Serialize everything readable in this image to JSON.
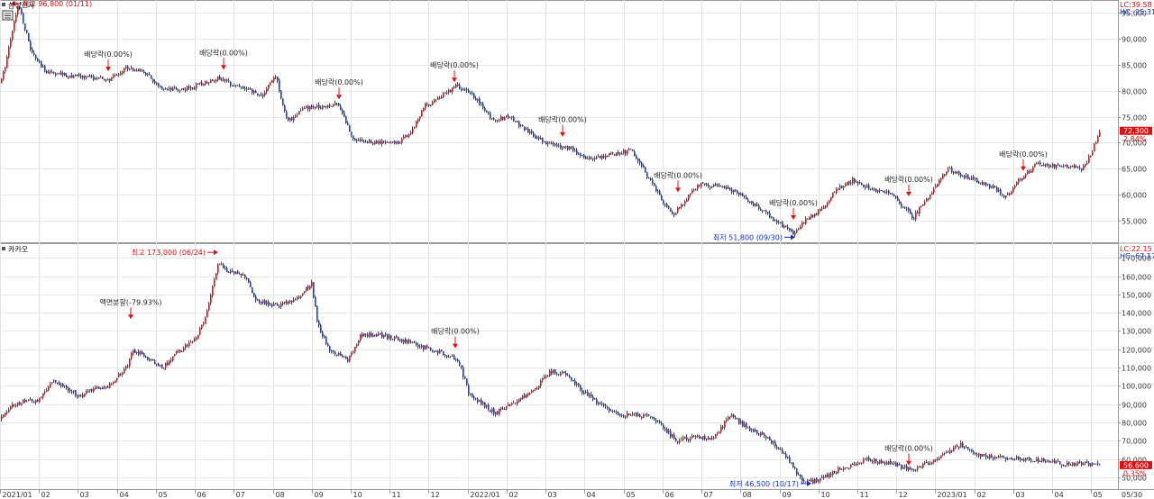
{
  "chart_data": [
    {
      "type": "candlestick",
      "title": "삼성전자",
      "indicators": [
        {
          "label": "LC:39.58",
          "color": "#d01010"
        },
        {
          "label": "HC:-25.31",
          "color": "#1030c0"
        }
      ],
      "y_ticks": [
        "55,000",
        "60,000",
        "65,000",
        "70,000",
        "75,000",
        "80,000",
        "85,000",
        "90,000",
        "95,000"
      ],
      "ylim": [
        51000,
        97500
      ],
      "current_price": "72,300",
      "current_change": "2.84%",
      "series": {
        "name": "삼성전자",
        "up_color": "#e01010",
        "down_color": "#1040d0",
        "anchors": [
          [
            0,
            81500
          ],
          [
            4,
            84000
          ],
          [
            12,
            91000
          ],
          [
            20,
            96800
          ],
          [
            34,
            87500
          ],
          [
            48,
            84000
          ],
          [
            70,
            83000
          ],
          [
            100,
            82600
          ],
          [
            120,
            82000
          ],
          [
            140,
            84600
          ],
          [
            160,
            83500
          ],
          [
            180,
            80000
          ],
          [
            210,
            80500
          ],
          [
            240,
            82500
          ],
          [
            270,
            80500
          ],
          [
            290,
            79000
          ],
          [
            305,
            83000
          ],
          [
            318,
            74000
          ],
          [
            335,
            76500
          ],
          [
            355,
            77000
          ],
          [
            375,
            77500
          ],
          [
            390,
            71000
          ],
          [
            410,
            70000
          ],
          [
            440,
            70000
          ],
          [
            455,
            72000
          ],
          [
            470,
            77000
          ],
          [
            490,
            79000
          ],
          [
            505,
            81000
          ],
          [
            525,
            79000
          ],
          [
            545,
            74500
          ],
          [
            565,
            75000
          ],
          [
            585,
            72000
          ],
          [
            605,
            70000
          ],
          [
            630,
            69000
          ],
          [
            650,
            67000
          ],
          [
            670,
            67500
          ],
          [
            700,
            68500
          ],
          [
            730,
            60000
          ],
          [
            745,
            56000
          ],
          [
            760,
            59000
          ],
          [
            775,
            62000
          ],
          [
            800,
            61500
          ],
          [
            820,
            60000
          ],
          [
            840,
            57500
          ],
          [
            860,
            55000
          ],
          [
            880,
            52500
          ],
          [
            895,
            55500
          ],
          [
            910,
            57000
          ],
          [
            925,
            60500
          ],
          [
            945,
            63000
          ],
          [
            965,
            61000
          ],
          [
            990,
            60000
          ],
          [
            1012,
            55500
          ],
          [
            1030,
            60000
          ],
          [
            1050,
            65000
          ],
          [
            1070,
            63500
          ],
          [
            1100,
            61500
          ],
          [
            1115,
            59500
          ],
          [
            1130,
            63000
          ],
          [
            1150,
            66000
          ],
          [
            1175,
            65500
          ],
          [
            1200,
            65000
          ],
          [
            1210,
            68000
          ],
          [
            1219,
            72300
          ]
        ]
      },
      "annotations": [
        {
          "text": "최고 96,800 (01/11)",
          "color": "#d01010",
          "marker": "left-arrow",
          "x": 12,
          "y": 96800
        },
        {
          "text": "최저 51,800 (09/30)",
          "color": "#1030c0",
          "marker": "right-arrow",
          "x": 882,
          "y": 51800
        },
        {
          "text": "배당락(0.00%)",
          "color": "#222222",
          "marker": "down-arrow",
          "x": 120,
          "y": 83600
        },
        {
          "text": "배당락(0.00%)",
          "color": "#222222",
          "marker": "down-arrow",
          "x": 248,
          "y": 83900
        },
        {
          "text": "배당락(0.00%)",
          "color": "#222222",
          "marker": "down-arrow",
          "x": 376,
          "y": 78200
        },
        {
          "text": "배당락(0.00%)",
          "color": "#222222",
          "marker": "down-arrow",
          "x": 504,
          "y": 81500
        },
        {
          "text": "배당락(0.00%)",
          "color": "#222222",
          "marker": "down-arrow",
          "x": 624,
          "y": 71000
        },
        {
          "text": "배당락(0.00%)",
          "color": "#222222",
          "marker": "down-arrow",
          "x": 752,
          "y": 60300
        },
        {
          "text": "배당락(0.00%)",
          "color": "#222222",
          "marker": "down-arrow",
          "x": 880,
          "y": 55000
        },
        {
          "text": "배당락(0.00%)",
          "color": "#222222",
          "marker": "down-arrow",
          "x": 1008,
          "y": 59500
        },
        {
          "text": "배당락(0.00%)",
          "color": "#222222",
          "marker": "down-arrow",
          "x": 1135,
          "y": 64400
        }
      ]
    },
    {
      "type": "candlestick",
      "title": "카카오",
      "indicators": [
        {
          "label": "LC:22.15",
          "color": "#d01010"
        },
        {
          "label": "HC:-67.17",
          "color": "#1030c0"
        }
      ],
      "y_ticks": [
        "50,000",
        "60,000",
        "70,000",
        "80,000",
        "90,000",
        "100,000",
        "110,000",
        "120,000",
        "130,000",
        "140,000",
        "150,000",
        "160,000",
        "170,000"
      ],
      "ylim": [
        44000,
        178000
      ],
      "current_price": "56,600",
      "current_change": "0.35%",
      "series": {
        "name": "카카오",
        "up_color": "#e01010",
        "down_color": "#1040d0",
        "anchors": [
          [
            0,
            82000
          ],
          [
            10,
            88000
          ],
          [
            25,
            92000
          ],
          [
            40,
            91000
          ],
          [
            60,
            103000
          ],
          [
            75,
            98000
          ],
          [
            90,
            94000
          ],
          [
            100,
            98000
          ],
          [
            120,
            100000
          ],
          [
            135,
            108000
          ],
          [
            142,
            112000
          ],
          [
            146,
            120000
          ],
          [
            160,
            116000
          ],
          [
            180,
            110000
          ],
          [
            195,
            118000
          ],
          [
            215,
            125000
          ],
          [
            228,
            138000
          ],
          [
            236,
            155000
          ],
          [
            242,
            168000
          ],
          [
            250,
            163000
          ],
          [
            270,
            160000
          ],
          [
            285,
            146000
          ],
          [
            305,
            144000
          ],
          [
            325,
            146000
          ],
          [
            345,
            156000
          ],
          [
            352,
            133000
          ],
          [
            365,
            120000
          ],
          [
            385,
            114000
          ],
          [
            400,
            128000
          ],
          [
            420,
            128000
          ],
          [
            445,
            125000
          ],
          [
            470,
            121000
          ],
          [
            490,
            118000
          ],
          [
            508,
            114000
          ],
          [
            520,
            95000
          ],
          [
            535,
            90000
          ],
          [
            548,
            85000
          ],
          [
            570,
            91000
          ],
          [
            590,
            97000
          ],
          [
            610,
            108000
          ],
          [
            630,
            106000
          ],
          [
            645,
            97000
          ],
          [
            665,
            90000
          ],
          [
            685,
            84000
          ],
          [
            720,
            84000
          ],
          [
            735,
            77000
          ],
          [
            750,
            70000
          ],
          [
            770,
            72000
          ],
          [
            790,
            71000
          ],
          [
            810,
            84000
          ],
          [
            825,
            78000
          ],
          [
            850,
            72000
          ],
          [
            870,
            62000
          ],
          [
            890,
            48000
          ],
          [
            900,
            47500
          ],
          [
            920,
            52000
          ],
          [
            940,
            56000
          ],
          [
            960,
            60000
          ],
          [
            990,
            57000
          ],
          [
            1012,
            54000
          ],
          [
            1030,
            58000
          ],
          [
            1050,
            63000
          ],
          [
            1065,
            68000
          ],
          [
            1080,
            63000
          ],
          [
            1100,
            61000
          ],
          [
            1130,
            60000
          ],
          [
            1160,
            59000
          ],
          [
            1180,
            57000
          ],
          [
            1200,
            57500
          ],
          [
            1219,
            56600
          ]
        ]
      },
      "annotations": [
        {
          "text": "최고 173,000 (06/24)",
          "color": "#d01010",
          "marker": "right-arrow",
          "x": 242,
          "y": 173000
        },
        {
          "text": "최저 46,500 (10/17)",
          "color": "#1030c0",
          "marker": "right-arrow",
          "x": 900,
          "y": 46500
        },
        {
          "text": "액면분할(-79.93%)",
          "color": "#222222",
          "marker": "down-arrow",
          "x": 145,
          "y": 136000
        },
        {
          "text": "배당락(0.00%)",
          "color": "#222222",
          "marker": "down-arrow",
          "x": 505,
          "y": 120000
        },
        {
          "text": "배당락(0.00%)",
          "color": "#222222",
          "marker": "down-arrow",
          "x": 1008,
          "y": 56000
        }
      ]
    }
  ],
  "x_axis": {
    "labels": [
      "2021/01",
      "02",
      "03",
      "04",
      "05",
      "06",
      "07",
      "08",
      "09",
      "10",
      "11",
      "12",
      "2022/01",
      "02",
      "03",
      "04",
      "05",
      "06",
      "07",
      "08",
      "09",
      "10",
      "11",
      "12",
      "2023/01",
      "02",
      "03",
      "04",
      "05"
    ],
    "end_label": "05/30"
  }
}
